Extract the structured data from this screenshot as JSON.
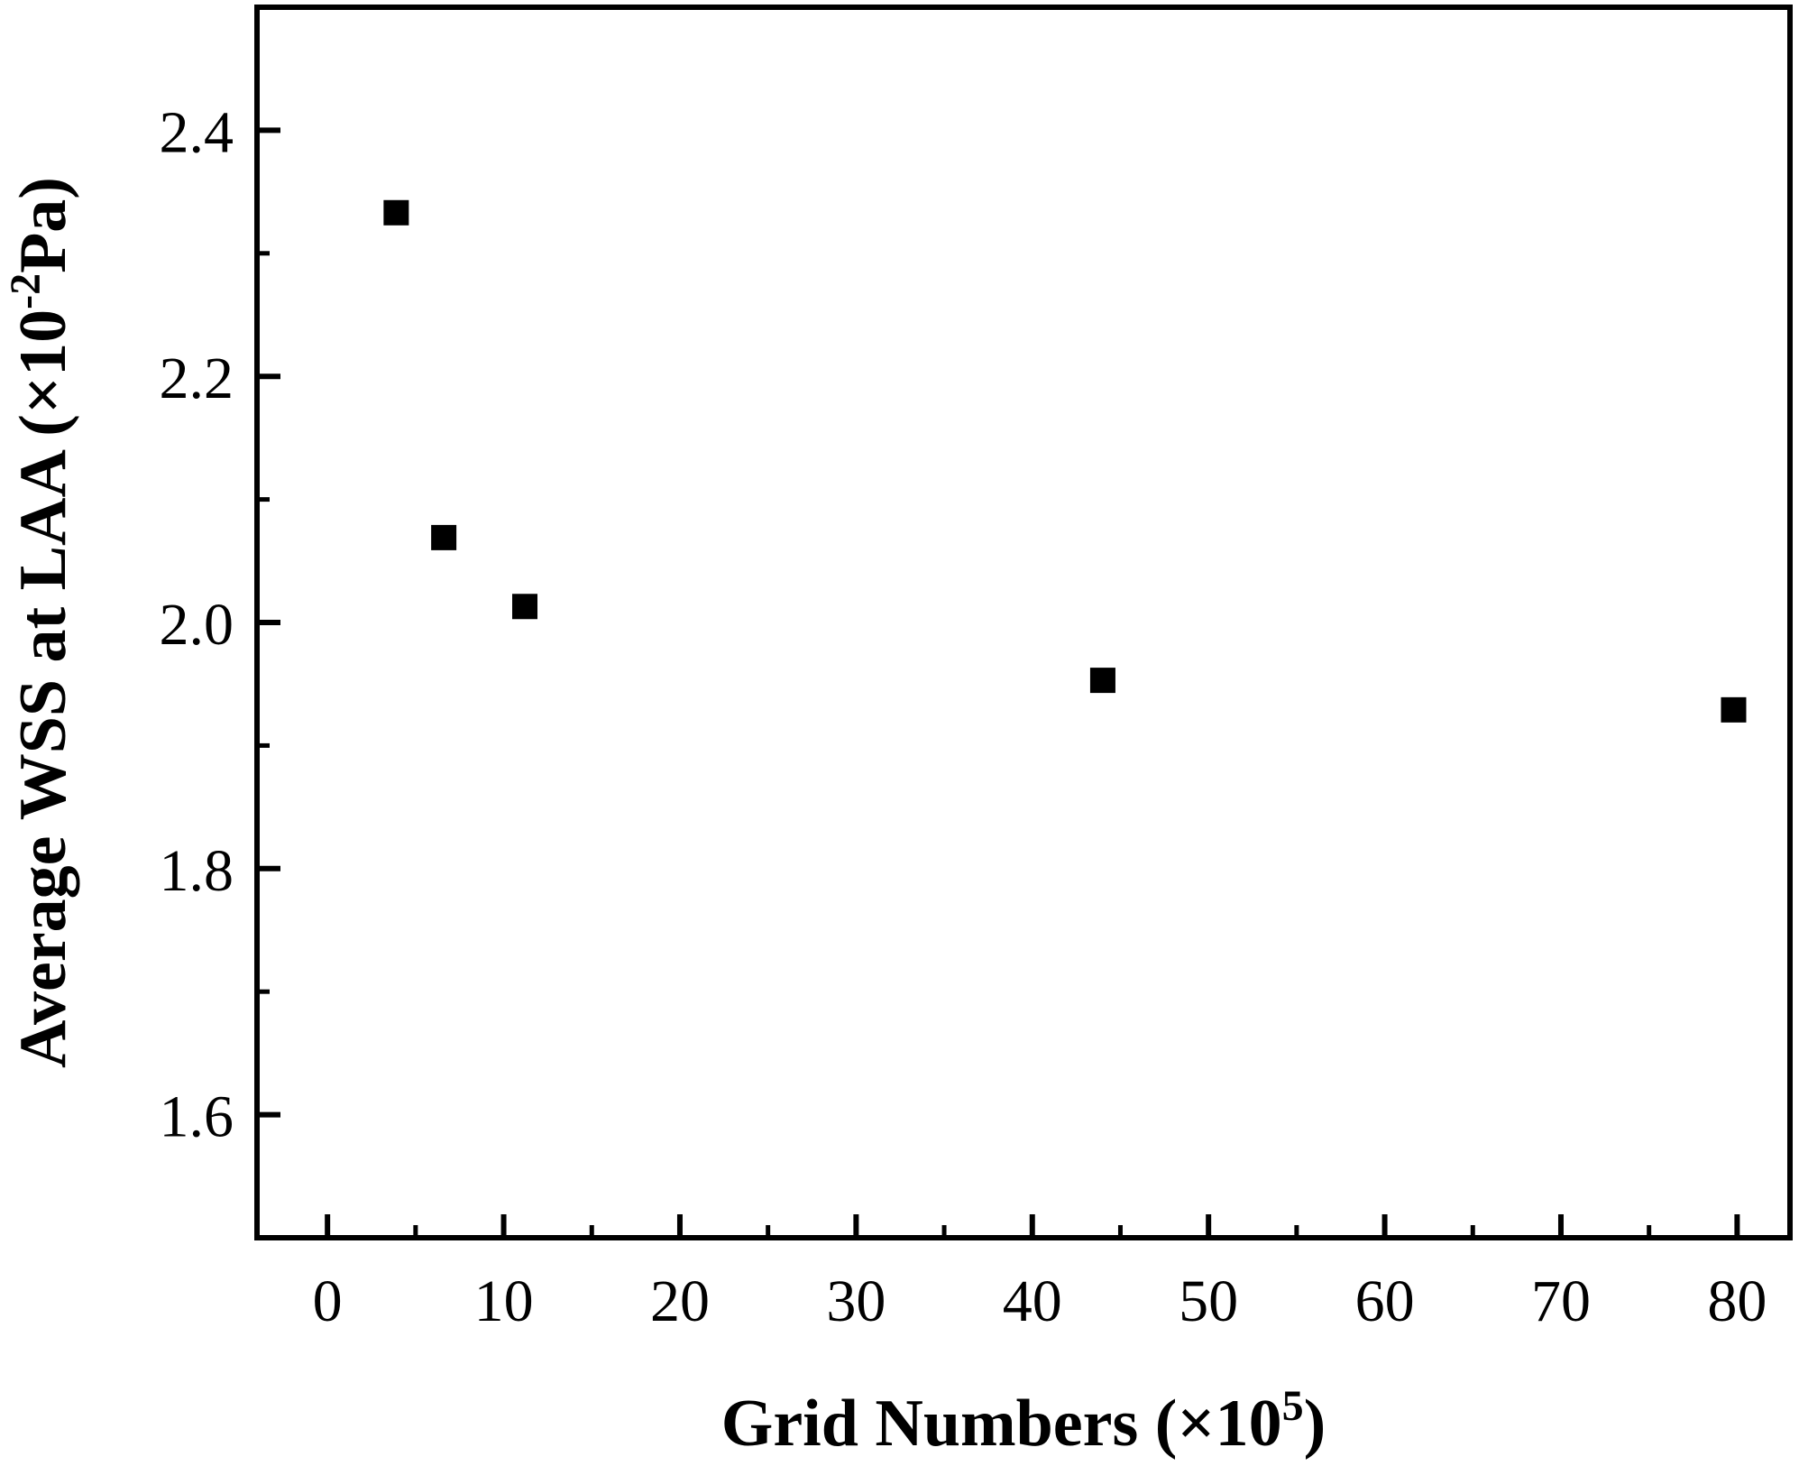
{
  "chart_data": {
    "type": "scatter",
    "title": "",
    "xlabel": "Grid Numbers (×10",
    "xlabel_superscript": "5",
    "xlabel_suffix": ")",
    "ylabel": "Average WSS at LAA (×10",
    "ylabel_superscript": "-2",
    "ylabel_suffix": "Pa)",
    "xlim": [
      -4,
      83
    ],
    "ylim": [
      1.5,
      2.5
    ],
    "grid": false,
    "legend": null,
    "x_ticks": [
      0,
      10,
      20,
      30,
      40,
      50,
      60,
      70,
      80
    ],
    "x_tick_labels": [
      "0",
      "10",
      "20",
      "30",
      "40",
      "50",
      "60",
      "70",
      "80"
    ],
    "y_ticks": [
      1.6,
      1.8,
      2.0,
      2.2,
      2.4
    ],
    "y_tick_labels": [
      "1.6",
      "1.8",
      "2.0",
      "2.2",
      "2.4"
    ],
    "x_minor_ticks": [
      5,
      15,
      25,
      35,
      45,
      55,
      65,
      75
    ],
    "y_minor_ticks": [
      1.5,
      1.7,
      1.9,
      2.1,
      2.3
    ],
    "series": [
      {
        "marker": "square",
        "color": "#000000",
        "points": [
          {
            "x": 3.9,
            "y": 2.333
          },
          {
            "x": 6.6,
            "y": 2.069
          },
          {
            "x": 11.2,
            "y": 2.013
          },
          {
            "x": 44.0,
            "y": 1.953
          },
          {
            "x": 79.8,
            "y": 1.929
          }
        ]
      }
    ]
  }
}
